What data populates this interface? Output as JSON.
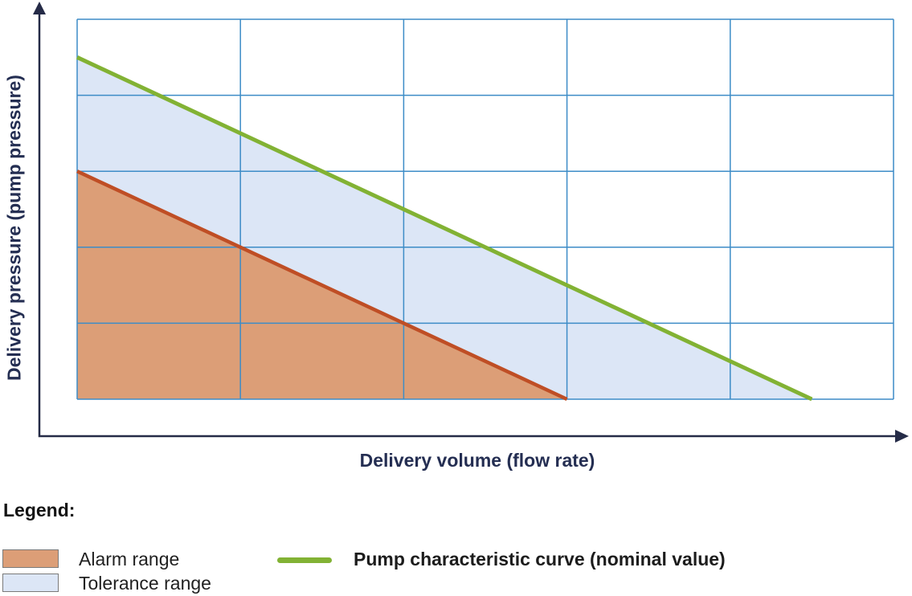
{
  "chart": {
    "y_axis_label": "Delivery pressure (pump pressure)",
    "x_axis_label": "Delivery volume (flow rate)"
  },
  "chart_data": {
    "type": "area",
    "title": "",
    "xlabel": "Delivery volume (flow rate)",
    "ylabel": "Delivery pressure (pump pressure)",
    "xlim": [
      0,
      5
    ],
    "ylim": [
      0,
      5
    ],
    "x_gridlines": [
      0,
      1,
      2,
      3,
      4,
      5
    ],
    "y_gridlines": [
      0,
      1,
      2,
      3,
      4,
      5
    ],
    "grid": "on",
    "tick_labels": "none (qualitative axes, no numeric ticks shown)",
    "regions": [
      {
        "name": "Tolerance range",
        "polygon": [
          [
            0,
            0
          ],
          [
            0,
            4.5
          ],
          [
            4.5,
            0
          ]
        ],
        "fill": "#dce6f6"
      },
      {
        "name": "Alarm range",
        "polygon": [
          [
            0,
            0
          ],
          [
            0,
            3
          ],
          [
            3,
            0
          ]
        ],
        "fill": "#dc9e77"
      }
    ],
    "series": [
      {
        "name": "Alarm range boundary",
        "type": "line",
        "x": [
          0,
          3
        ],
        "y": [
          3,
          0
        ],
        "color": "#bf4e25",
        "width": 4.5
      },
      {
        "name": "Pump characteristic curve (nominal value)",
        "type": "line",
        "x": [
          0,
          4.5
        ],
        "y": [
          4.5,
          0
        ],
        "color": "#82b234",
        "width": 5
      }
    ],
    "legend_position": "below"
  },
  "legend": {
    "title": "Legend:",
    "items": [
      {
        "label": "Alarm range",
        "swatch": "#dc9e77"
      },
      {
        "label": "Tolerance range",
        "swatch": "#dce6f6"
      },
      {
        "label": "Pump characteristic curve (nominal value)",
        "line_color": "#82b234"
      }
    ]
  },
  "colors": {
    "background": "#ffffff",
    "axis": "#252b47",
    "grid": "#3d8cc7",
    "curve_green": "#82b234",
    "alarm_line": "#bf4e25",
    "alarm_fill": "#dc9e77",
    "tolerance_fill": "#dce6f6",
    "axis_label_text": "#242e52",
    "legend_text": "#212121",
    "swatch_border": "#7a7a7a"
  }
}
